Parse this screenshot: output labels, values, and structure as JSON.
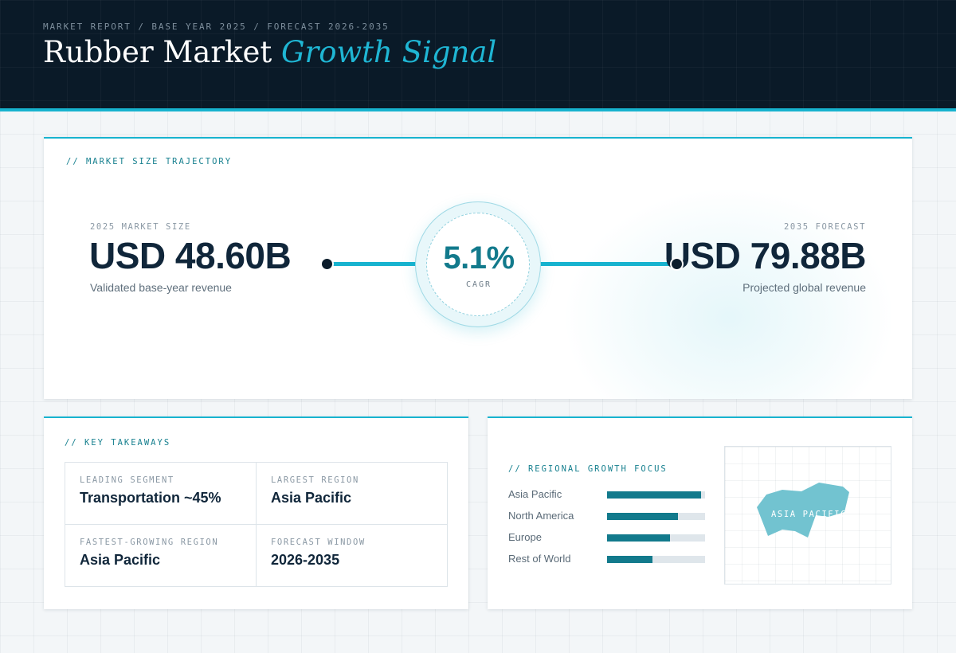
{
  "header": {
    "eyebrow": "MARKET REPORT / BASE YEAR 2025 / FORECAST 2026-2035",
    "title_main": "Rubber Market ",
    "title_accent": "Growth Signal"
  },
  "trajectory": {
    "label": "// MARKET SIZE TRAJECTORY",
    "start": {
      "label": "2025 MARKET SIZE",
      "value": "USD 48.60B",
      "description": "Validated base-year revenue"
    },
    "end": {
      "label": "2035 FORECAST",
      "value": "USD 79.88B",
      "description": "Projected global revenue"
    },
    "cagr": {
      "value": "5.1%",
      "label": "CAGR"
    }
  },
  "takeaways": {
    "label": "// KEY TAKEAWAYS",
    "items": [
      {
        "label": "LEADING SEGMENT",
        "value": "Transportation ~45%"
      },
      {
        "label": "LARGEST REGION",
        "value": "Asia Pacific"
      },
      {
        "label": "FASTEST-GROWING REGION",
        "value": "Asia Pacific"
      },
      {
        "label": "FORECAST WINDOW",
        "value": "2026-2035"
      }
    ]
  },
  "regional": {
    "label": "// REGIONAL GROWTH FOCUS",
    "bars": [
      {
        "region": "Asia Pacific",
        "share": 0.96
      },
      {
        "region": "North America",
        "share": 0.72
      },
      {
        "region": "Europe",
        "share": 0.64
      },
      {
        "region": "Rest of World",
        "share": 0.46
      }
    ],
    "map_label": "ASIA PACIFIC"
  },
  "colors": {
    "accent": "#17b3cf",
    "bar_fill": "#127a8c",
    "header_bg": "#0a1a28",
    "map_shape": "#72c3d0"
  }
}
